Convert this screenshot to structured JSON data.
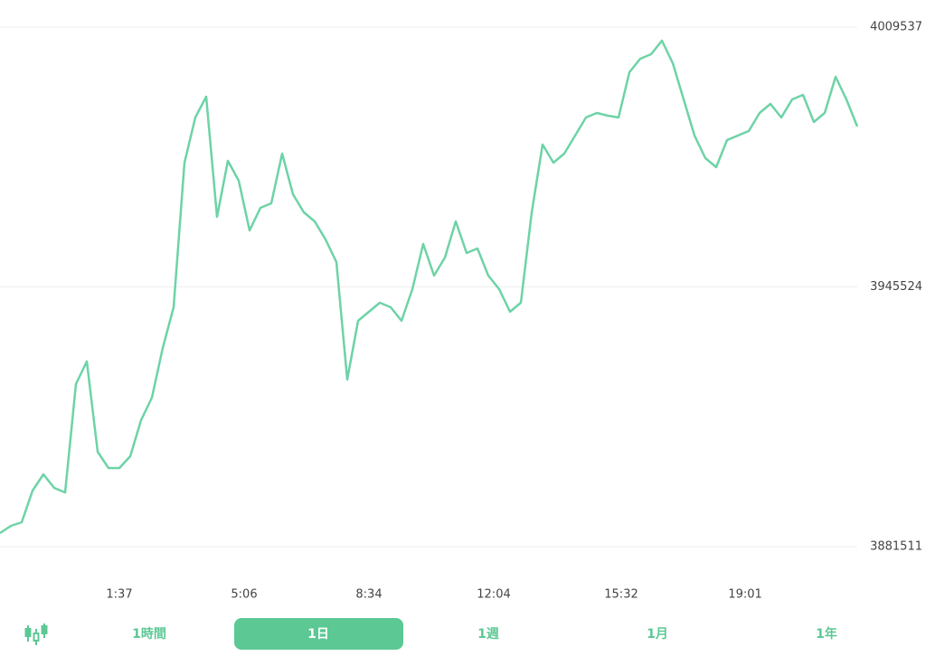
{
  "chart_data": {
    "type": "line",
    "values": [
      3884851,
      3886632,
      3887523,
      3895315,
      3899323,
      3895983,
      3894870,
      3921588,
      3927154,
      3904889,
      3900882,
      3900882,
      3903776,
      3912682,
      3918248,
      3930494,
      3940513,
      3976137,
      3987270,
      3992391,
      3962778,
      3976583,
      3971684,
      3959439,
      3965005,
      3966118,
      3978364,
      3968345,
      3963892,
      3961665,
      3957212,
      3951646,
      3922701,
      3937174,
      3939400,
      3941627,
      3940513,
      3937174,
      3944966,
      3956099,
      3948306,
      3952759,
      3961665,
      3953872,
      3954986,
      3948306,
      3944966,
      3939400,
      3941627,
      3963892,
      3980590,
      3976137,
      3978364,
      3982817,
      3987270,
      3988383,
      3987715,
      3987270,
      3998402,
      4001742,
      4002855,
      4006195,
      4000629,
      3991723,
      3982817,
      3977251,
      3975024,
      3981704,
      3982817,
      3983930,
      3988383,
      3990610,
      3987270,
      3991723,
      3992836,
      3986157,
      3988383,
      3997289,
      3991723,
      3985043
    ],
    "color": "#6dd3a6",
    "xlim": [
      0,
      79
    ],
    "xticks": [
      {
        "value": 11,
        "label": "1:37"
      },
      {
        "value": 22.5,
        "label": "5:06"
      },
      {
        "value": 34,
        "label": "8:34"
      },
      {
        "value": 45.5,
        "label": "12:04"
      },
      {
        "value": 57.25,
        "label": "15:32"
      },
      {
        "value": 68.67,
        "label": "19:01"
      }
    ],
    "ylim": [
      3881511,
      4009537
    ],
    "yticks": [
      3881511,
      3945524,
      4009537
    ],
    "grid": true
  },
  "tabs": [
    "1時間",
    "1日",
    "1週",
    "1月",
    "1年"
  ],
  "selected_tab": 1
}
